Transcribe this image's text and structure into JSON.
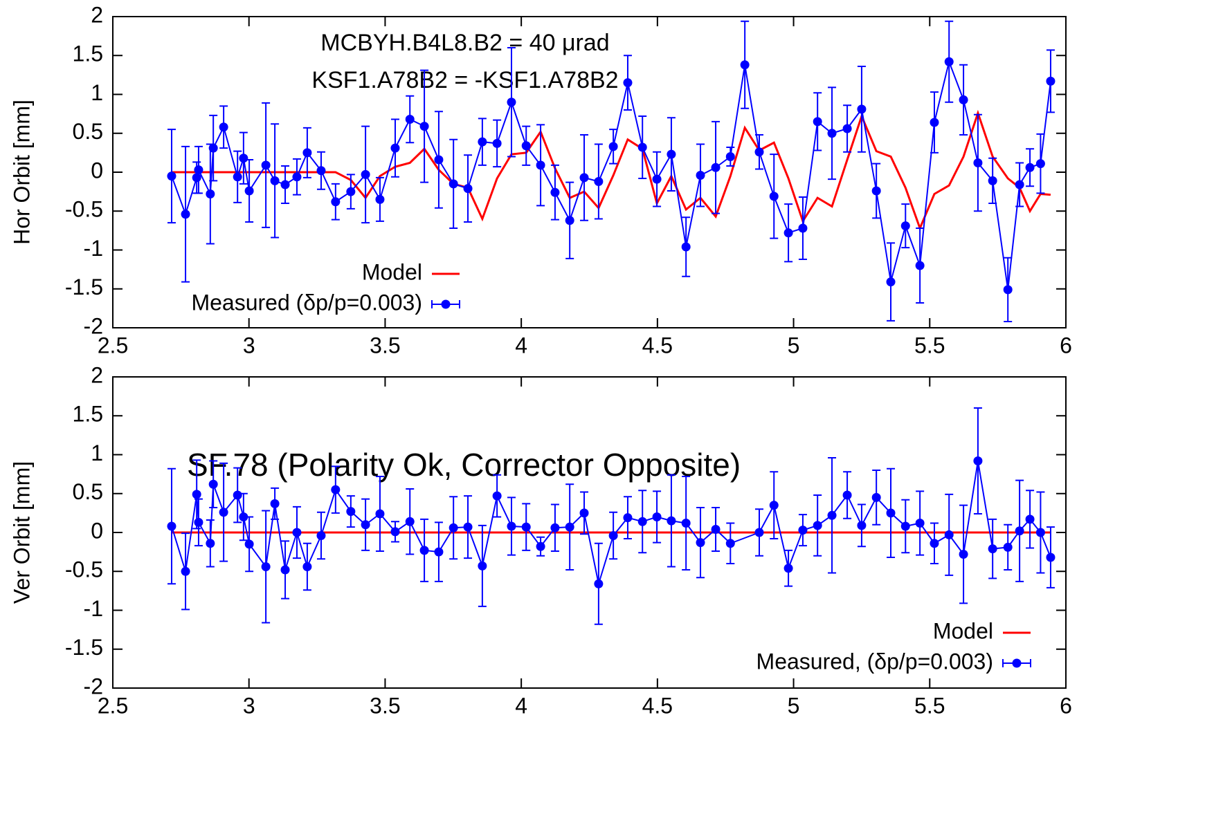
{
  "chart_data": [
    {
      "type": "line",
      "ylabel": "Hor Orbit [mm]",
      "annotations": [
        "MCBYH.B4L8.B2 = 40 μrad",
        "KSF1.A78B2 = -KSF1.A78B2"
      ],
      "xlim": [
        2.5,
        6
      ],
      "xticks": [
        2.5,
        3,
        3.5,
        4,
        4.5,
        5,
        5.5,
        6
      ],
      "ylim": [
        -2,
        2
      ],
      "yticks": [
        -2,
        -1.5,
        -1,
        -0.5,
        0,
        0.5,
        1,
        1.5,
        2
      ],
      "legend": "lower center",
      "series": [
        {
          "name": "Model",
          "color": "#ff0000",
          "x": [
            2.716,
            3.318,
            3.374,
            3.428,
            3.481,
            3.537,
            3.591,
            3.644,
            3.697,
            3.751,
            3.804,
            3.857,
            3.911,
            3.964,
            4.018,
            4.071,
            4.124,
            4.178,
            4.231,
            4.284,
            4.338,
            4.391,
            4.445,
            4.498,
            4.551,
            4.605,
            4.658,
            4.714,
            4.768,
            4.821,
            4.874,
            4.928,
            4.981,
            5.034,
            5.088,
            5.141,
            5.197,
            5.25,
            5.304,
            5.357,
            5.411,
            5.464,
            5.517,
            5.571,
            5.624,
            5.677,
            5.731,
            5.787,
            5.83,
            5.868,
            5.907,
            5.944
          ],
          "values": [
            0,
            0,
            -0.1,
            -0.33,
            -0.05,
            0.07,
            0.12,
            0.3,
            0.03,
            -0.15,
            -0.2,
            -0.6,
            -0.08,
            0.23,
            0.25,
            0.52,
            0.05,
            -0.33,
            -0.25,
            -0.46,
            -0.04,
            0.42,
            0.3,
            -0.4,
            -0.05,
            -0.48,
            -0.33,
            -0.57,
            -0.05,
            0.57,
            0.28,
            0.38,
            -0.08,
            -0.63,
            -0.33,
            -0.44,
            0.16,
            0.72,
            0.27,
            0.2,
            -0.2,
            -0.72,
            -0.28,
            -0.17,
            0.2,
            0.76,
            0.2,
            -0.08,
            -0.2,
            -0.5,
            -0.28,
            -0.29
          ]
        },
        {
          "name": "Measured (δp/p=0.003)",
          "color": "#0000ff",
          "x": [
            2.716,
            2.767,
            2.808,
            2.815,
            2.858,
            2.869,
            2.907,
            2.958,
            2.98,
            3.001,
            3.062,
            3.095,
            3.133,
            3.176,
            3.214,
            3.265,
            3.318,
            3.374,
            3.428,
            3.481,
            3.537,
            3.591,
            3.644,
            3.697,
            3.751,
            3.804,
            3.857,
            3.911,
            3.964,
            4.018,
            4.071,
            4.124,
            4.178,
            4.231,
            4.284,
            4.338,
            4.391,
            4.445,
            4.498,
            4.551,
            4.605,
            4.658,
            4.714,
            4.768,
            4.821,
            4.874,
            4.928,
            4.981,
            5.034,
            5.088,
            5.141,
            5.197,
            5.25,
            5.304,
            5.357,
            5.411,
            5.464,
            5.517,
            5.571,
            5.624,
            5.677,
            5.731,
            5.787,
            5.83,
            5.868,
            5.907,
            5.944
          ],
          "values": [
            -0.05,
            -0.54,
            -0.07,
            0.03,
            -0.28,
            0.31,
            0.58,
            -0.06,
            0.18,
            -0.24,
            0.09,
            -0.11,
            -0.16,
            -0.06,
            0.25,
            0.02,
            -0.38,
            -0.25,
            -0.03,
            -0.35,
            0.31,
            0.68,
            0.59,
            0.16,
            -0.15,
            -0.21,
            0.39,
            0.37,
            0.9,
            0.34,
            0.09,
            -0.26,
            -0.62,
            -0.07,
            -0.12,
            0.33,
            1.15,
            0.32,
            -0.09,
            0.23,
            -0.96,
            -0.04,
            0.06,
            0.2,
            1.38,
            0.26,
            -0.31,
            -0.78,
            -0.72,
            0.65,
            0.5,
            0.56,
            0.81,
            -0.24,
            -1.41,
            -0.69,
            -1.2,
            0.64,
            1.42,
            0.93,
            0.12,
            -0.11,
            -1.51,
            -0.16,
            0.06,
            0.11,
            1.17
          ],
          "errors": [
            0.6,
            0.87,
            0.2,
            0.3,
            0.64,
            0.42,
            0.27,
            0.33,
            0.33,
            0.4,
            0.8,
            0.73,
            0.24,
            0.23,
            0.32,
            0.24,
            0.23,
            0.22,
            0.62,
            0.28,
            0.37,
            0.3,
            0.72,
            0.62,
            0.57,
            0.43,
            0.3,
            0.3,
            0.7,
            0.25,
            0.52,
            0.35,
            0.49,
            0.55,
            0.48,
            0.22,
            0.35,
            0.4,
            0.35,
            0.47,
            0.38,
            0.4,
            0.59,
            0.12,
            0.56,
            0.22,
            0.54,
            0.37,
            0.4,
            0.37,
            0.59,
            0.3,
            0.55,
            0.35,
            0.5,
            0.28,
            0.48,
            0.39,
            0.52,
            0.45,
            0.62,
            0.29,
            0.41,
            0.28,
            0.24,
            0.38,
            0.4
          ]
        }
      ]
    },
    {
      "type": "line",
      "ylabel": "Ver Orbit [mm]",
      "annotations": [
        "SF.78 (Polarity Ok, Corrector Opposite)"
      ],
      "xlim": [
        2.5,
        6
      ],
      "xticks": [
        2.5,
        3,
        3.5,
        4,
        4.5,
        5,
        5.5,
        6
      ],
      "ylim": [
        -2,
        2
      ],
      "yticks": [
        -2,
        -1.5,
        -1,
        -0.5,
        0,
        0.5,
        1,
        1.5,
        2
      ],
      "legend": "lower right",
      "series": [
        {
          "name": "Model",
          "color": "#ff0000",
          "x": [
            2.716,
            4.2,
            5.944
          ],
          "values": [
            0,
            0,
            0
          ]
        },
        {
          "name": "Measured, (δp/p=0.003)",
          "color": "#0000ff",
          "x": [
            2.716,
            2.767,
            2.808,
            2.815,
            2.858,
            2.869,
            2.907,
            2.958,
            2.98,
            3.001,
            3.062,
            3.095,
            3.133,
            3.176,
            3.214,
            3.265,
            3.318,
            3.374,
            3.428,
            3.481,
            3.537,
            3.591,
            3.644,
            3.697,
            3.751,
            3.804,
            3.857,
            3.911,
            3.964,
            4.018,
            4.071,
            4.124,
            4.178,
            4.231,
            4.284,
            4.338,
            4.391,
            4.445,
            4.498,
            4.551,
            4.605,
            4.658,
            4.714,
            4.768,
            4.874,
            4.928,
            4.981,
            5.034,
            5.088,
            5.141,
            5.197,
            5.25,
            5.304,
            5.357,
            5.411,
            5.464,
            5.517,
            5.571,
            5.624,
            5.677,
            5.731,
            5.787,
            5.83,
            5.868,
            5.907,
            5.944
          ],
          "values": [
            0.08,
            -0.5,
            0.49,
            0.13,
            -0.14,
            0.62,
            0.26,
            0.48,
            0.2,
            -0.15,
            -0.44,
            0.37,
            -0.48,
            0,
            -0.44,
            -0.04,
            0.55,
            0.27,
            0.1,
            0.24,
            0.01,
            0.14,
            -0.23,
            -0.25,
            0.06,
            0.07,
            -0.43,
            0.47,
            0.08,
            0.07,
            -0.18,
            0.06,
            0.07,
            0.25,
            -0.66,
            -0.04,
            0.19,
            0.14,
            0.2,
            0.15,
            0.12,
            -0.13,
            0.04,
            -0.14,
            0,
            0.35,
            -0.46,
            0.03,
            0.09,
            0.22,
            0.48,
            0.09,
            0.45,
            0.25,
            0.08,
            0.12,
            -0.14,
            -0.03,
            -0.28,
            0.92,
            -0.21,
            -0.19,
            0.02,
            0.17,
            0,
            -0.32
          ],
          "errors": [
            0.74,
            0.49,
            0.44,
            0.3,
            0.3,
            0.3,
            0.63,
            0.35,
            0.3,
            0.35,
            0.72,
            0.2,
            0.37,
            0.33,
            0.3,
            0.3,
            0.3,
            0.2,
            0.33,
            0.48,
            0.13,
            0.42,
            0.4,
            0.38,
            0.4,
            0.4,
            0.52,
            0.27,
            0.37,
            0.3,
            0.12,
            0.3,
            0.55,
            0.27,
            0.52,
            0.3,
            0.27,
            0.4,
            0.33,
            0.59,
            0.6,
            0.45,
            0.28,
            0.26,
            0.3,
            0.43,
            0.23,
            0.2,
            0.39,
            0.74,
            0.3,
            0.27,
            0.35,
            0.57,
            0.34,
            0.41,
            0.26,
            0.52,
            0.63,
            0.68,
            0.38,
            0.29,
            0.65,
            0.37,
            0.52,
            0.39
          ]
        }
      ]
    }
  ]
}
